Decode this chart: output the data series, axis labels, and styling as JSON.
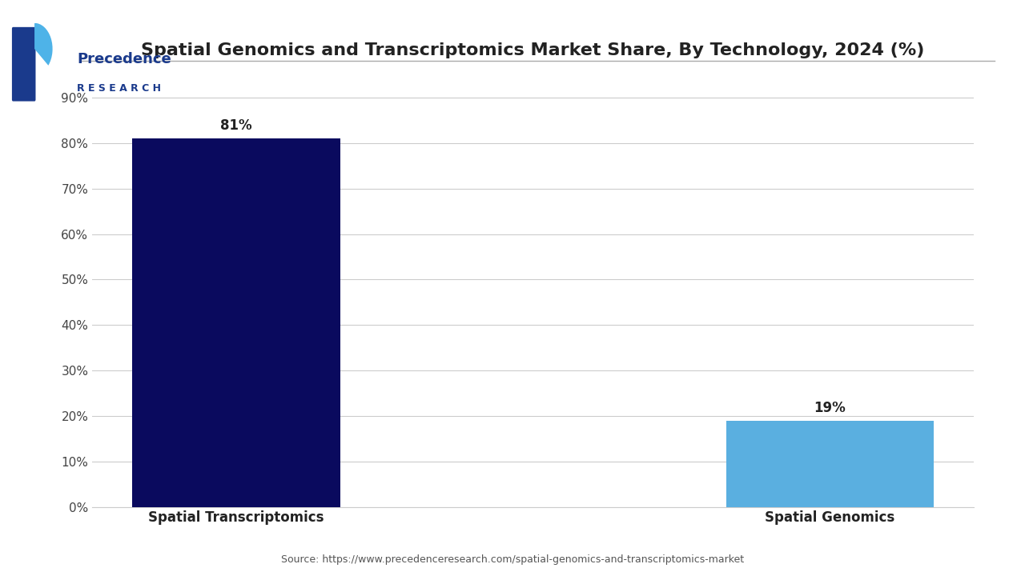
{
  "title": "Spatial Genomics and Transcriptomics Market Share, By Technology, 2024 (%)",
  "categories": [
    "Spatial Transcriptomics",
    "Spatial Genomics"
  ],
  "values": [
    81,
    19
  ],
  "bar_colors": [
    "#0a0a5e",
    "#5aafe0"
  ],
  "ylabel_ticks": [
    "0%",
    "10%",
    "20%",
    "30%",
    "40%",
    "50%",
    "60%",
    "70%",
    "80%",
    "90%"
  ],
  "ytick_values": [
    0,
    10,
    20,
    30,
    40,
    50,
    60,
    70,
    80,
    90
  ],
  "ylim": [
    0,
    95
  ],
  "source_text": "Source: https://www.precedenceresearch.com/spatial-genomics-and-transcriptomics-market",
  "background_color": "#ffffff",
  "title_fontsize": 16,
  "bar_label_fontsize": 12,
  "tick_fontsize": 11,
  "xlabel_fontsize": 12,
  "source_fontsize": 9,
  "title_color": "#222222",
  "tick_color": "#444444",
  "label_color": "#222222",
  "source_color": "#555555",
  "grid_color": "#cccccc",
  "logo_color_blue": "#1a3a8c",
  "logo_color_light": "#4eb3e8"
}
